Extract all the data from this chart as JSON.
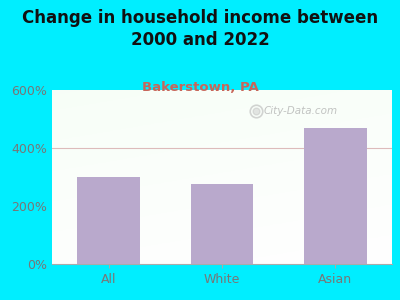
{
  "title": "Change in household income between\n2000 and 2022",
  "subtitle": "Bakerstown, PA",
  "categories": [
    "All",
    "White",
    "Asian"
  ],
  "values": [
    300,
    275,
    470
  ],
  "bar_color": "#b9a9cc",
  "title_fontsize": 12,
  "subtitle_fontsize": 9.5,
  "subtitle_color": "#c8665a",
  "tick_label_color": "#777777",
  "background_outer": "#00eeff",
  "ylim": [
    0,
    600
  ],
  "yticks": [
    0,
    200,
    400,
    600
  ],
  "ytick_labels": [
    "0%",
    "200%",
    "400%",
    "600%"
  ],
  "watermark": "City-Data.com",
  "gridline_color": "#ddbbbb",
  "title_color": "#111111"
}
